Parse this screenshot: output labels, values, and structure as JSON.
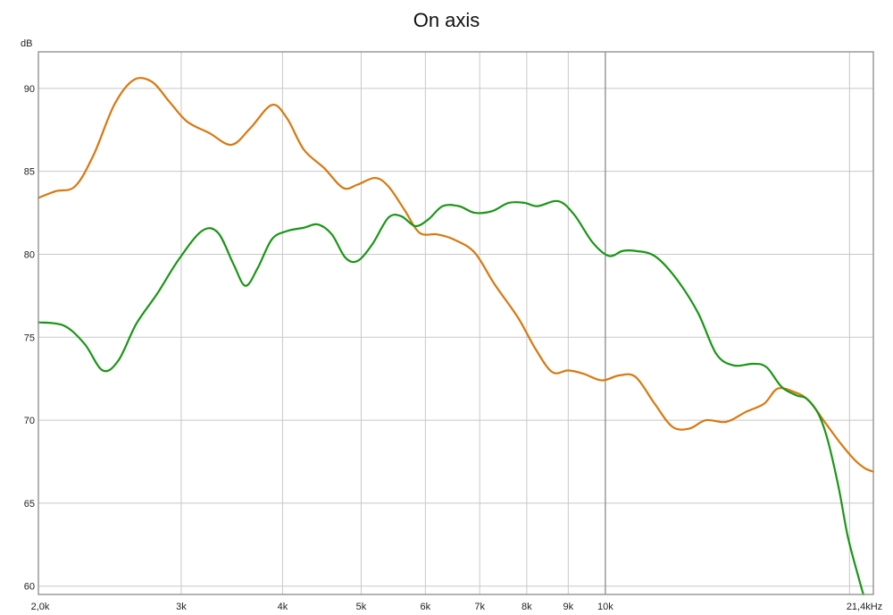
{
  "chart_data": {
    "type": "line",
    "title": "On axis",
    "ylabel": "dB",
    "x_scale": "log",
    "xlim": [
      2000,
      21400
    ],
    "ylim": [
      59.5,
      92.2
    ],
    "grid": true,
    "x_ticks": [
      {
        "value": 2000,
        "label": "2,0k"
      },
      {
        "value": 3000,
        "label": "3k"
      },
      {
        "value": 4000,
        "label": "4k"
      },
      {
        "value": 5000,
        "label": "5k"
      },
      {
        "value": 6000,
        "label": "6k"
      },
      {
        "value": 7000,
        "label": "7k"
      },
      {
        "value": 8000,
        "label": "8k"
      },
      {
        "value": 9000,
        "label": "9k"
      },
      {
        "value": 10000,
        "label": "10k"
      },
      {
        "value": 21400,
        "label": "21,4kHz"
      }
    ],
    "x_minor_grid": [
      20000
    ],
    "y_ticks": [
      60,
      65,
      70,
      75,
      80,
      85,
      90
    ],
    "series": [
      {
        "color": "#d9780e",
        "points": [
          [
            2000,
            83.4
          ],
          [
            2100,
            83.8
          ],
          [
            2220,
            84.1
          ],
          [
            2340,
            86.0
          ],
          [
            2480,
            89.0
          ],
          [
            2620,
            90.5
          ],
          [
            2760,
            90.4
          ],
          [
            2900,
            89.2
          ],
          [
            3050,
            88.0
          ],
          [
            3250,
            87.3
          ],
          [
            3460,
            86.6
          ],
          [
            3650,
            87.6
          ],
          [
            3880,
            89.0
          ],
          [
            4050,
            88.2
          ],
          [
            4250,
            86.3
          ],
          [
            4500,
            85.2
          ],
          [
            4750,
            84.0
          ],
          [
            4950,
            84.2
          ],
          [
            5200,
            84.6
          ],
          [
            5400,
            84.1
          ],
          [
            5650,
            82.7
          ],
          [
            5900,
            81.3
          ],
          [
            6200,
            81.2
          ],
          [
            6500,
            80.9
          ],
          [
            6900,
            80.1
          ],
          [
            7300,
            78.2
          ],
          [
            7800,
            76.2
          ],
          [
            8200,
            74.3
          ],
          [
            8600,
            72.9
          ],
          [
            9000,
            73.0
          ],
          [
            9400,
            72.8
          ],
          [
            9900,
            72.4
          ],
          [
            10400,
            72.7
          ],
          [
            10900,
            72.6
          ],
          [
            11500,
            71.0
          ],
          [
            12100,
            69.6
          ],
          [
            12700,
            69.5
          ],
          [
            13300,
            70.0
          ],
          [
            14100,
            69.9
          ],
          [
            14900,
            70.5
          ],
          [
            15700,
            71.0
          ],
          [
            16300,
            71.9
          ],
          [
            17100,
            71.7
          ],
          [
            17800,
            71.2
          ],
          [
            18700,
            69.8
          ],
          [
            19500,
            68.6
          ],
          [
            20300,
            67.6
          ],
          [
            20900,
            67.1
          ],
          [
            21400,
            66.9
          ]
        ]
      },
      {
        "color": "#1a9615",
        "points": [
          [
            2000,
            75.9
          ],
          [
            2150,
            75.7
          ],
          [
            2280,
            74.6
          ],
          [
            2400,
            73.0
          ],
          [
            2510,
            73.6
          ],
          [
            2640,
            75.8
          ],
          [
            2800,
            77.6
          ],
          [
            2980,
            79.7
          ],
          [
            3180,
            81.4
          ],
          [
            3330,
            81.3
          ],
          [
            3480,
            79.4
          ],
          [
            3600,
            78.1
          ],
          [
            3730,
            79.2
          ],
          [
            3880,
            80.9
          ],
          [
            4050,
            81.4
          ],
          [
            4250,
            81.6
          ],
          [
            4420,
            81.8
          ],
          [
            4600,
            81.2
          ],
          [
            4780,
            79.8
          ],
          [
            4950,
            79.6
          ],
          [
            5160,
            80.6
          ],
          [
            5400,
            82.2
          ],
          [
            5600,
            82.3
          ],
          [
            5830,
            81.7
          ],
          [
            6050,
            82.1
          ],
          [
            6300,
            82.9
          ],
          [
            6600,
            82.9
          ],
          [
            6900,
            82.5
          ],
          [
            7250,
            82.6
          ],
          [
            7600,
            83.1
          ],
          [
            7950,
            83.1
          ],
          [
            8250,
            82.9
          ],
          [
            8750,
            83.2
          ],
          [
            9150,
            82.4
          ],
          [
            9650,
            80.7
          ],
          [
            10100,
            79.9
          ],
          [
            10500,
            80.2
          ],
          [
            10900,
            80.2
          ],
          [
            11500,
            79.9
          ],
          [
            12200,
            78.6
          ],
          [
            13000,
            76.5
          ],
          [
            13700,
            74.0
          ],
          [
            14400,
            73.3
          ],
          [
            15200,
            73.4
          ],
          [
            15800,
            73.2
          ],
          [
            16500,
            72.0
          ],
          [
            17200,
            71.5
          ],
          [
            17700,
            71.3
          ],
          [
            18300,
            70.4
          ],
          [
            18800,
            68.8
          ],
          [
            19400,
            65.9
          ],
          [
            19900,
            63.0
          ],
          [
            20500,
            60.6
          ],
          [
            20800,
            59.5
          ]
        ]
      }
    ]
  }
}
